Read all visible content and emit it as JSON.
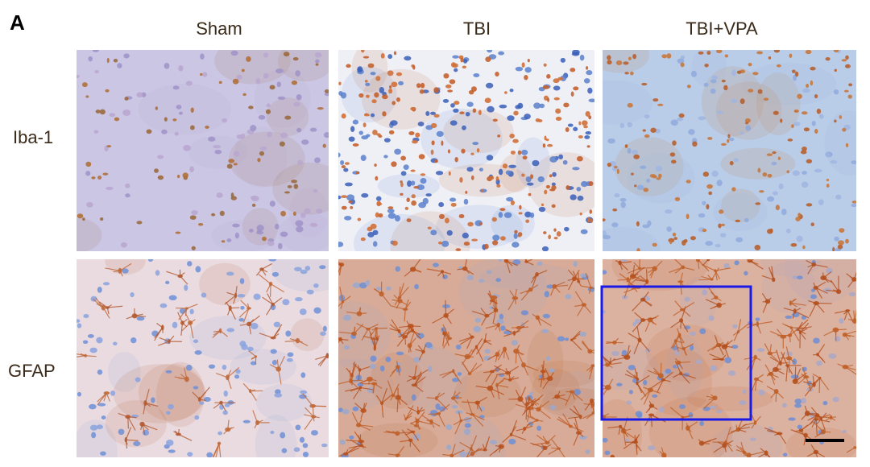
{
  "figure": {
    "panel_label": "A",
    "columns": [
      "Sham",
      "TBI",
      "TBI+VPA"
    ],
    "rows": [
      "Iba-1",
      "GFAP"
    ]
  }
}
